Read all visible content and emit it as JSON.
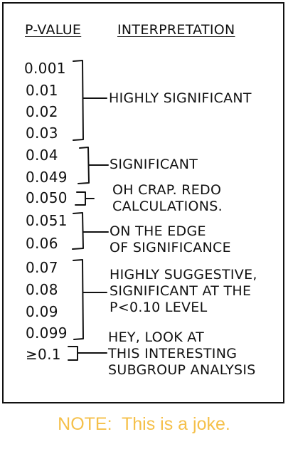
{
  "headers": {
    "pvalue": "P-VALUE",
    "interpretation": "INTERPRETATION"
  },
  "pvalues": [
    "0.001",
    "0.01",
    "0.02",
    "0.03",
    "0.04",
    "0.049",
    "0.050",
    "0.051",
    "0.06",
    "0.07",
    "0.08",
    "0.09",
    "0.099",
    "≥0.1"
  ],
  "interpretations": {
    "highly_significant": "HIGHLY SIGNIFICANT",
    "significant": "SIGNIFICANT",
    "oh_crap": "OH CRAP. REDO\nCALCULATIONS.",
    "edge": "ON THE EDGE\nOF SIGNIFICANCE",
    "suggestive": "HIGHLY SUGGESTIVE,\nSIGNIFICANT AT THE\nP<0.10 LEVEL",
    "subgroup": "HEY, LOOK AT\nTHIS INTERESTING\nSUBGROUP ANALYSIS"
  },
  "note": "NOTE:  This is a joke.",
  "colors": {
    "note": "#f5c04a",
    "ink": "#111111"
  }
}
